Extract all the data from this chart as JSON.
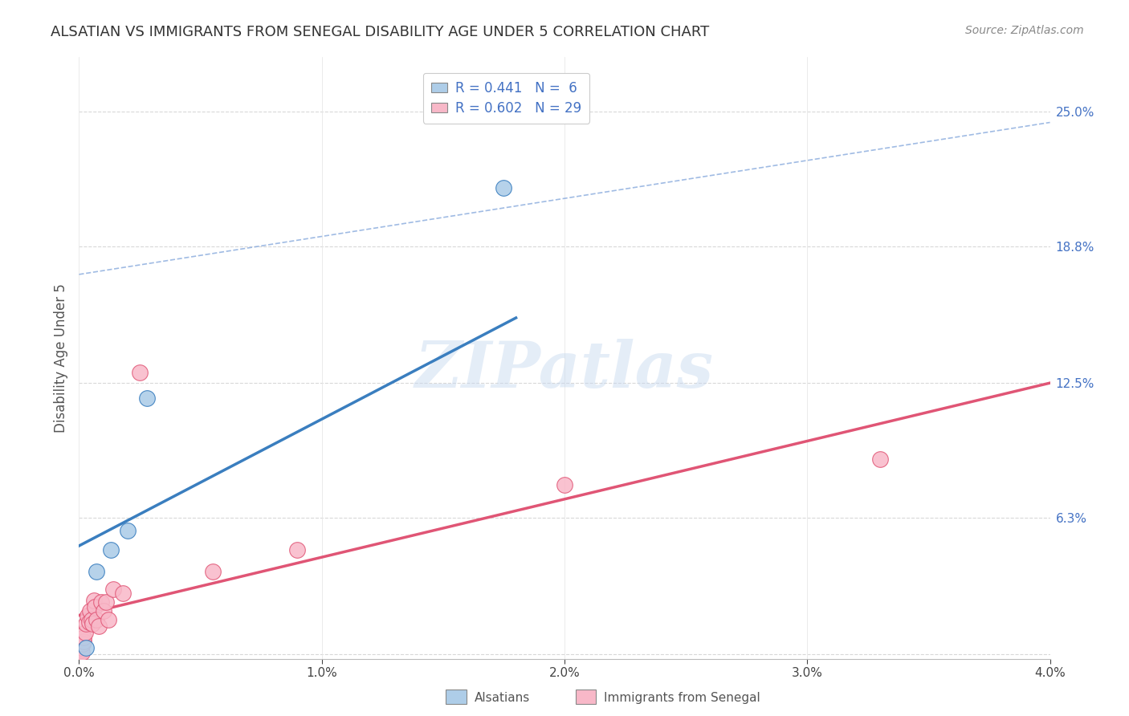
{
  "title": "ALSATIAN VS IMMIGRANTS FROM SENEGAL DISABILITY AGE UNDER 5 CORRELATION CHART",
  "source": "Source: ZipAtlas.com",
  "ylabel": "Disability Age Under 5",
  "right_yticks": [
    0.063,
    0.125,
    0.188,
    0.25
  ],
  "right_yticklabels": [
    "6.3%",
    "12.5%",
    "18.8%",
    "25.0%"
  ],
  "xmin": 0.0,
  "xmax": 0.04,
  "ymin": -0.002,
  "ymax": 0.275,
  "alsatian_points": [
    [
      0.0003,
      0.003
    ],
    [
      0.0007,
      0.038
    ],
    [
      0.0013,
      0.048
    ],
    [
      0.002,
      0.057
    ],
    [
      0.0028,
      0.118
    ],
    [
      0.0175,
      0.215
    ]
  ],
  "senegal_points": [
    [
      5e-05,
      0.001
    ],
    [
      8e-05,
      0.002
    ],
    [
      0.0001,
      0.003
    ],
    [
      0.00012,
      0.001
    ],
    [
      0.00015,
      0.005
    ],
    [
      0.00018,
      0.006
    ],
    [
      0.0002,
      0.008
    ],
    [
      0.00025,
      0.01
    ],
    [
      0.0003,
      0.014
    ],
    [
      0.00035,
      0.018
    ],
    [
      0.0004,
      0.015
    ],
    [
      0.00045,
      0.02
    ],
    [
      0.0005,
      0.016
    ],
    [
      0.00055,
      0.014
    ],
    [
      0.0006,
      0.025
    ],
    [
      0.00065,
      0.022
    ],
    [
      0.0007,
      0.016
    ],
    [
      0.0008,
      0.013
    ],
    [
      0.0009,
      0.024
    ],
    [
      0.001,
      0.02
    ],
    [
      0.0011,
      0.024
    ],
    [
      0.0012,
      0.016
    ],
    [
      0.0014,
      0.03
    ],
    [
      0.0018,
      0.028
    ],
    [
      0.0025,
      0.13
    ],
    [
      0.0055,
      0.038
    ],
    [
      0.009,
      0.048
    ],
    [
      0.02,
      0.078
    ],
    [
      0.033,
      0.09
    ]
  ],
  "blue_line_x": [
    0.0,
    0.018
  ],
  "blue_line_y": [
    0.05,
    0.155
  ],
  "pink_line_x": [
    0.0,
    0.04
  ],
  "pink_line_y": [
    0.018,
    0.125
  ],
  "dashed_line_x": [
    0.0,
    0.04
  ],
  "dashed_line_y": [
    0.175,
    0.245
  ],
  "blue_scatter_color": "#aecde8",
  "blue_line_color": "#3a7ebf",
  "pink_scatter_color": "#f8b8c8",
  "pink_line_color": "#e05575",
  "dashed_line_color": "#88aadd",
  "legend_blue_label": "R = 0.441   N =  6",
  "legend_pink_label": "R = 0.602   N = 29",
  "watermark": "ZIPatlas",
  "grid_color": "#d8d8d8"
}
